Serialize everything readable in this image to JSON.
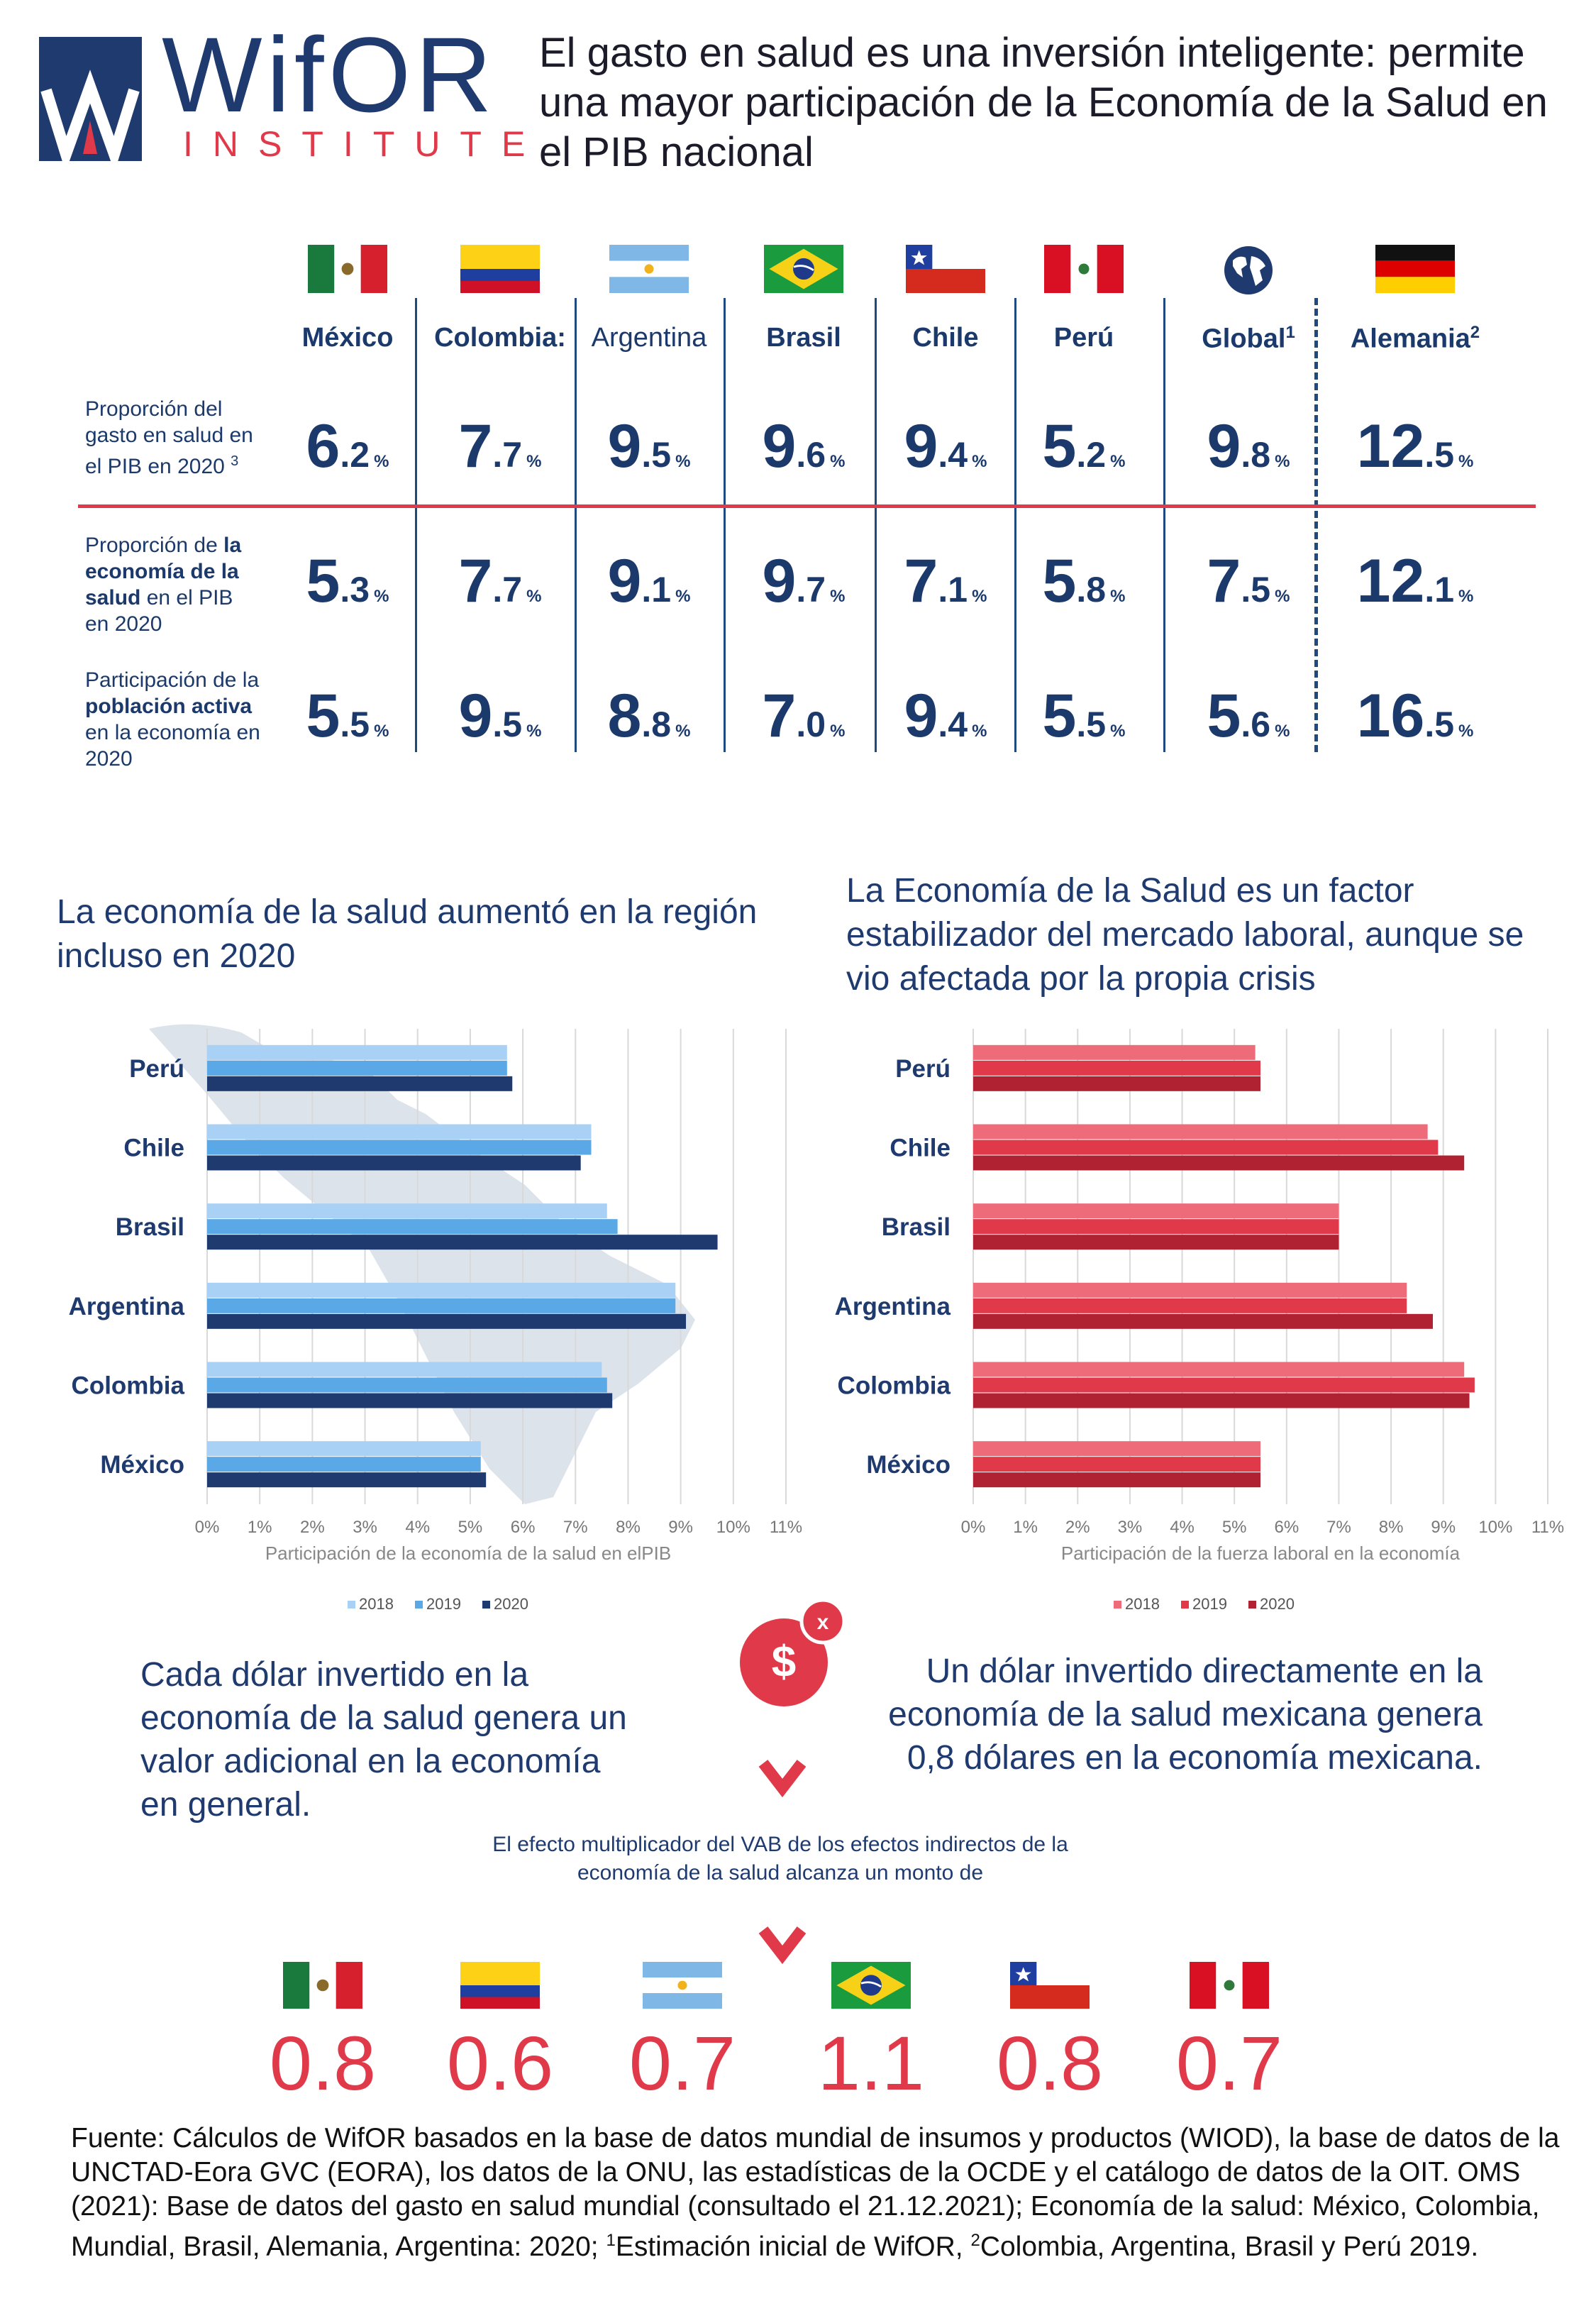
{
  "header": {
    "logo_word": "WifOR",
    "logo_sub": "INSTITUTE",
    "headline": "El gasto en salud es una inversión inteligente: permite una mayor participación de la Economía de la Salud en el PIB nacional"
  },
  "table": {
    "countries": [
      {
        "name": "México",
        "flag": "mexico-flag"
      },
      {
        "name": "Colombia:",
        "flag": "colombia-flag"
      },
      {
        "name": "Argentina",
        "flag": "argentina-flag"
      },
      {
        "name": "Brasil",
        "flag": "brazil-flag"
      },
      {
        "name": "Chile",
        "flag": "chile-flag"
      },
      {
        "name": "Perú",
        "flag": "peru-flag"
      },
      {
        "name": "Global",
        "sup": "1",
        "flag": "globe-icon"
      },
      {
        "name": "Alemania",
        "sup": "2",
        "flag": "germany-flag"
      }
    ],
    "rows": [
      {
        "label_parts": [
          {
            "t": "Proporción del gasto en salud en el PIB en 2020 ",
            "b": false
          },
          {
            "t": "3",
            "sup": true
          }
        ],
        "values": [
          [
            "6",
            ".2"
          ],
          [
            "7",
            ".7"
          ],
          [
            "9",
            ".5"
          ],
          [
            "9",
            ".6"
          ],
          [
            "9",
            ".4"
          ],
          [
            "5",
            ".2"
          ],
          [
            "9",
            ".8"
          ],
          [
            "12",
            ".5"
          ]
        ]
      },
      {
        "label_parts": [
          {
            "t": "Proporción de ",
            "b": false
          },
          {
            "t": "la economía de la salud",
            "b": true
          },
          {
            "t": " en el PIB en 2020",
            "b": false
          }
        ],
        "values": [
          [
            "5",
            ".3"
          ],
          [
            "7",
            ".7"
          ],
          [
            "9",
            ".1"
          ],
          [
            "9",
            ".7"
          ],
          [
            "7",
            ".1"
          ],
          [
            "5",
            ".8"
          ],
          [
            "7",
            ".5"
          ],
          [
            "12",
            ".1"
          ]
        ]
      },
      {
        "label_parts": [
          {
            "t": "Participación de la ",
            "b": false
          },
          {
            "t": "población activa",
            "b": true
          },
          {
            "t": " en la economía en 2020",
            "b": false
          }
        ],
        "values": [
          [
            "5",
            ".5"
          ],
          [
            "9",
            ".5"
          ],
          [
            "8",
            ".8"
          ],
          [
            "7",
            ".0"
          ],
          [
            "9",
            ".4"
          ],
          [
            "5",
            ".5"
          ],
          [
            "5",
            ".6"
          ],
          [
            "16",
            ".5"
          ]
        ]
      }
    ],
    "pct": "%"
  },
  "left_title": "La economía de la salud aumentó en la región incluso en 2020",
  "right_title": "La Economía de la Salud es un factor estabilizador del mercado laboral, aunque se vio afectada por la propia crisis",
  "chart_data": [
    {
      "type": "bar",
      "orientation": "horizontal",
      "categories": [
        "Perú",
        "Chile",
        "Brasil",
        "Argentina",
        "Colombia",
        "México"
      ],
      "series": [
        {
          "name": "2018",
          "color": "#a9d1f5",
          "values": [
            5.7,
            7.3,
            7.6,
            8.9,
            7.5,
            5.2
          ]
        },
        {
          "name": "2019",
          "color": "#5aa9e6",
          "values": [
            5.7,
            7.3,
            7.8,
            8.9,
            7.6,
            5.2
          ]
        },
        {
          "name": "2020",
          "color": "#1f3a6e",
          "values": [
            5.8,
            7.1,
            9.7,
            9.1,
            7.7,
            5.3
          ]
        }
      ],
      "xlabel": "Participación de la economía de la salud en elPIB",
      "xlim": [
        0,
        11
      ],
      "xticks": [
        "0%",
        "1%",
        "2%",
        "3%",
        "4%",
        "5%",
        "6%",
        "7%",
        "8%",
        "9%",
        "10%",
        "11%"
      ],
      "legend": "bottom",
      "grid": true
    },
    {
      "type": "bar",
      "orientation": "horizontal",
      "categories": [
        "Perú",
        "Chile",
        "Brasil",
        "Argentina",
        "Colombia",
        "México"
      ],
      "series": [
        {
          "name": "2018",
          "color": "#ee6b7a",
          "values": [
            5.4,
            8.7,
            7.0,
            8.3,
            9.4,
            5.5
          ]
        },
        {
          "name": "2019",
          "color": "#e03a4a",
          "values": [
            5.5,
            8.9,
            7.0,
            8.3,
            9.6,
            5.5
          ]
        },
        {
          "name": "2020",
          "color": "#b02232",
          "values": [
            5.5,
            9.4,
            7.0,
            8.8,
            9.5,
            5.5
          ]
        }
      ],
      "xlabel": "Participación de la fuerza laboral en la economía",
      "xlim": [
        0,
        11
      ],
      "xticks": [
        "0%",
        "1%",
        "2%",
        "3%",
        "4%",
        "5%",
        "6%",
        "7%",
        "8%",
        "9%",
        "10%",
        "11%"
      ],
      "legend": "bottom",
      "grid": true
    }
  ],
  "multiplier": {
    "left_text": "Cada dólar invertido en la economía de la salud genera un valor adicional en la economía en general.",
    "right_text": "Un dólar invertido directamente en la economía de la salud mexicana genera 0,8 dólares en la economía mexicana.",
    "dollar": "$",
    "x": "x",
    "center_text": "El efecto multiplicador del VAB de los efectos indirectos de la economía de la salud alcanza un monto de",
    "values": [
      {
        "flag": "mexico-flag",
        "value": "0.8"
      },
      {
        "flag": "colombia-flag",
        "value": "0.6"
      },
      {
        "flag": "argentina-flag",
        "value": "0.7"
      },
      {
        "flag": "brazil-flag",
        "value": "1.1"
      },
      {
        "flag": "chile-flag",
        "value": "0.8"
      },
      {
        "flag": "peru-flag",
        "value": "0.7"
      }
    ]
  },
  "source": {
    "part1": "Fuente: Cálculos de WifOR basados en la base de datos mundial de insumos y productos (WIOD), la base de datos de la UNCTAD-Eora GVC (EORA), los datos de la ONU, las estadísticas de la OCDE y el catálogo de datos de la OIT. OMS (2021): Base de datos del gasto en salud mundial (consultado el 21.12.2021); Economía de la salud:  México, Colombia, Mundial, Brasil, Alemania, Argentina: 2020;  ",
    "sup1": "1",
    "part2": "Estimación inicial de WifOR, ",
    "sup2": "2",
    "part3": "Colombia, Argentina, Brasil y Perú 2019."
  }
}
